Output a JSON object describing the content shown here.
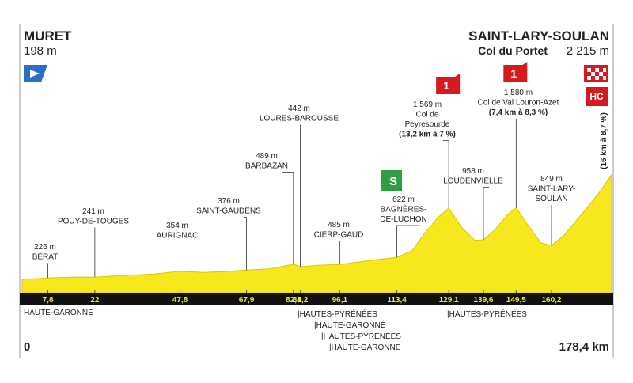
{
  "chart_data": {
    "type": "area",
    "start": {
      "name": "MURET",
      "altitude": "198 m",
      "distance": "0"
    },
    "finish": {
      "name": "SAINT-LARY-SOULAN",
      "climb": "Col du Portet",
      "altitude": "2 215 m",
      "distance": "178,4 km",
      "category": "HC",
      "climb_info": "(16 km à 8,7 %)"
    },
    "x": [
      0,
      7.8,
      15,
      22,
      30,
      40,
      47.8,
      55,
      60,
      67.9,
      75,
      82.1,
      84.2,
      90,
      96.1,
      105,
      113.4,
      118,
      122,
      126,
      129.1,
      133,
      137,
      139.6,
      143,
      147,
      149.5,
      153,
      157,
      160.2,
      164,
      170,
      175,
      178.4
    ],
    "values": [
      198,
      226,
      240,
      241,
      270,
      300,
      354,
      330,
      345,
      376,
      400,
      489,
      442,
      470,
      485,
      560,
      622,
      750,
      1100,
      1400,
      1569,
      1200,
      950,
      958,
      1150,
      1450,
      1580,
      1250,
      900,
      849,
      1050,
      1500,
      1900,
      2215
    ],
    "color": "#f6e81c",
    "xlim": [
      0,
      178.4
    ],
    "ylim": [
      0,
      2300
    ],
    "waypoints": [
      {
        "km": {
          "value": 7.8,
          "label": "7,8"
        },
        "altitude": "226 m",
        "name": [
          "BÉRAT"
        ]
      },
      {
        "km": 22,
        "altitude": "241 m",
        "name": [
          "POUY-DE-TOUGES"
        ]
      },
      {
        "km": {
          "value": 47.8,
          "label": "47,8"
        },
        "altitude": "354 m",
        "name": [
          "AURIGNAC"
        ]
      },
      {
        "km": {
          "value": 67.9,
          "label": "67,9"
        },
        "altitude": "376 m",
        "name": [
          "SAINT-GAUDENS"
        ]
      },
      {
        "km": {
          "value": 82.1,
          "label": "82,1"
        },
        "altitude": "489 m",
        "name": [
          "BARBAZAN"
        ]
      },
      {
        "km": {
          "value": 84.2,
          "label": "84,2"
        },
        "altitude": "442 m",
        "name": [
          "LOURES-BAROUSSE"
        ]
      },
      {
        "km": {
          "value": 96.1,
          "label": "96,1"
        },
        "altitude": "485 m",
        "name": [
          "CIERP-GAUD"
        ]
      },
      {
        "km": {
          "value": 113.4,
          "label": "113,4"
        },
        "altitude": "622 m",
        "name": [
          "BAGNÈRES-",
          "DE-LUCHON"
        ],
        "sprint": "S"
      },
      {
        "km": {
          "value": 129.1,
          "label": "129,1"
        },
        "altitude": "1 569 m",
        "name": [
          "Col de",
          "Peyresourde"
        ],
        "climb_info": "(13,2 km à 7 %)",
        "category": "1"
      },
      {
        "km": {
          "value": 139.6,
          "label": "139,6"
        },
        "altitude": "958 m",
        "name": [
          "LOUDENVIELLE"
        ]
      },
      {
        "km": {
          "value": 149.5,
          "label": "149,5"
        },
        "altitude": "1 580 m",
        "name": [
          "Col de Val Louron-Azet"
        ],
        "climb_info": "(7,4 km à 8,3 %)",
        "category": "1"
      },
      {
        "km": {
          "value": 160.2,
          "label": "160,2"
        },
        "altitude": "849 m",
        "name": [
          "SAINT-LARY-",
          "SOULAN"
        ]
      }
    ],
    "regions": [
      "HAUTE-GARONNE",
      "|HAUTES-PYRÉNÉES",
      "|HAUTE-GARONNE",
      "|HAUTES-PYRÉNÉES",
      "|HAUTE-GARONNE",
      "|HAUTES-PYRÉNÉES"
    ]
  }
}
